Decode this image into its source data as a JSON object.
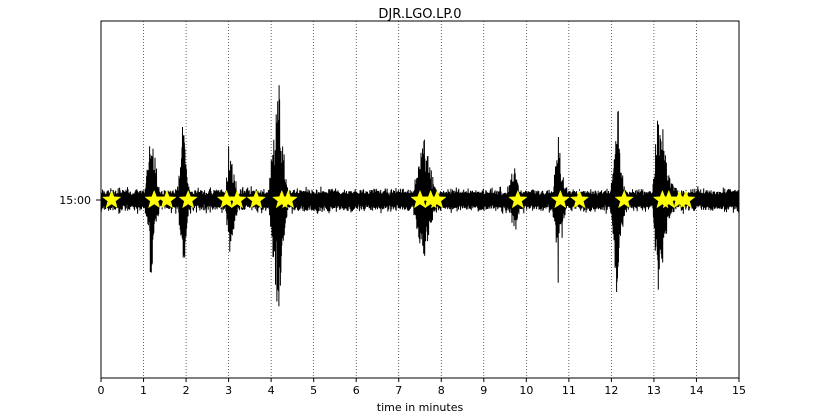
{
  "chart_data": {
    "type": "line",
    "title": "DJR.LGO.LP.0",
    "xlabel": "time in minutes",
    "ylabel": "",
    "xlim": [
      0,
      15
    ],
    "x_ticks": [
      "0",
      "1",
      "2",
      "3",
      "4",
      "5",
      "6",
      "7",
      "8",
      "9",
      "10",
      "11",
      "12",
      "13",
      "14",
      "15"
    ],
    "y_tick_label": "15:00",
    "grid": "vertical dotted lines at each minute",
    "trace_color": "#000000",
    "marker_color": "#ffff00",
    "marker_shape": "star",
    "event_markers_minutes": [
      0.25,
      1.25,
      1.55,
      2.05,
      2.95,
      3.2,
      3.65,
      4.25,
      4.4,
      7.5,
      7.75,
      7.9,
      9.8,
      10.8,
      11.25,
      12.3,
      13.2,
      13.35,
      13.6,
      13.75
    ],
    "bursts": [
      {
        "start": 1.0,
        "peak": 1.2,
        "end": 1.6,
        "amplitude": 0.6
      },
      {
        "start": 1.8,
        "peak": 1.95,
        "end": 2.2,
        "amplitude": 0.8
      },
      {
        "start": 2.9,
        "peak": 3.05,
        "end": 3.4,
        "amplitude": 0.55
      },
      {
        "start": 3.9,
        "peak": 4.2,
        "end": 4.55,
        "amplitude": 1.0
      },
      {
        "start": 7.3,
        "peak": 7.6,
        "end": 8.2,
        "amplitude": 0.65
      },
      {
        "start": 9.5,
        "peak": 9.75,
        "end": 10.1,
        "amplitude": 0.3
      },
      {
        "start": 10.6,
        "peak": 10.75,
        "end": 11.2,
        "amplitude": 0.55
      },
      {
        "start": 11.95,
        "peak": 12.15,
        "end": 12.5,
        "amplitude": 0.75
      },
      {
        "start": 12.95,
        "peak": 13.1,
        "end": 13.9,
        "amplitude": 0.85
      }
    ],
    "background_noise_amplitude": 0.09
  }
}
